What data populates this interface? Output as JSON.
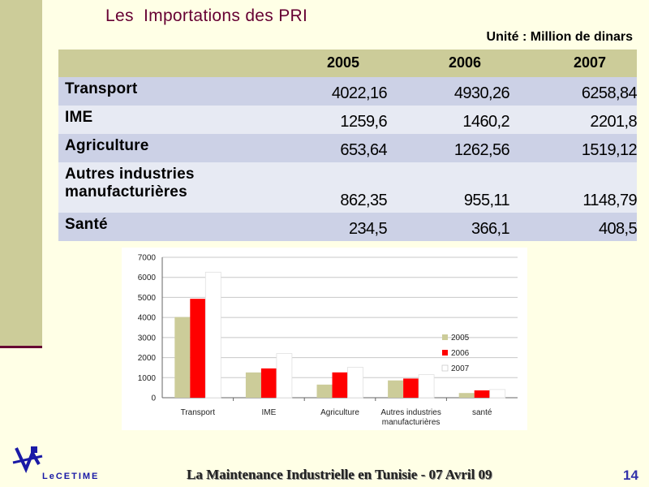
{
  "title": "Les  Importations des PRI",
  "unit": "Unité : Million de dinars",
  "table": {
    "years": [
      "2005",
      "2006",
      "2007"
    ],
    "rows": [
      {
        "label": "Transport",
        "values": [
          "4022,16",
          "4930,26",
          "6258,84"
        ]
      },
      {
        "label": "IME",
        "values": [
          "1259,6",
          "1460,2",
          "2201,8"
        ]
      },
      {
        "label": "Agriculture",
        "values": [
          "653,64",
          "1262,56",
          "1519,12"
        ]
      },
      {
        "label": "Autres industries manufacturières",
        "line1": "Autres industries",
        "line2": "manufacturières",
        "values": [
          "862,35",
          "955,11",
          "1148,79"
        ]
      },
      {
        "label": "Santé",
        "values": [
          "234,5",
          "366,1",
          "408,5"
        ]
      }
    ]
  },
  "chart_data": {
    "type": "bar",
    "categories": [
      "Transport",
      "IME",
      "Agriculture",
      "Autres industries manufacturières",
      "santé"
    ],
    "category_lines": [
      [
        "Transport"
      ],
      [
        "IME"
      ],
      [
        "Agriculture"
      ],
      [
        "Autres industries",
        "manufacturières"
      ],
      [
        "santé"
      ]
    ],
    "series": [
      {
        "name": "2005",
        "values": [
          4022.16,
          1259.6,
          653.64,
          862.35,
          234.5
        ],
        "color": "#cccc99"
      },
      {
        "name": "2006",
        "values": [
          4930.26,
          1460.2,
          1262.56,
          955.11,
          366.1
        ],
        "color": "#ff0000"
      },
      {
        "name": "2007",
        "values": [
          6258.84,
          2201.8,
          1519.12,
          1148.79,
          408.5
        ],
        "color": "#ffffff"
      }
    ],
    "ylim": [
      0,
      7000
    ],
    "yticks": [
      "0",
      "1000",
      "2000",
      "3000",
      "4000",
      "5000",
      "6000",
      "7000"
    ],
    "grid": true,
    "legend": "right"
  },
  "logo_text": "LeCETIME",
  "footer": "La Maintenance Industrielle en Tunisie  - 07 Avril 09",
  "page_number": "14",
  "colors": {
    "sidebar": "#cccc99",
    "title": "#660033",
    "header_row": "#cccc99",
    "row_dark": "#ccd1e6",
    "row_light": "#e7eaf3",
    "accent_blue": "#3333aa"
  }
}
